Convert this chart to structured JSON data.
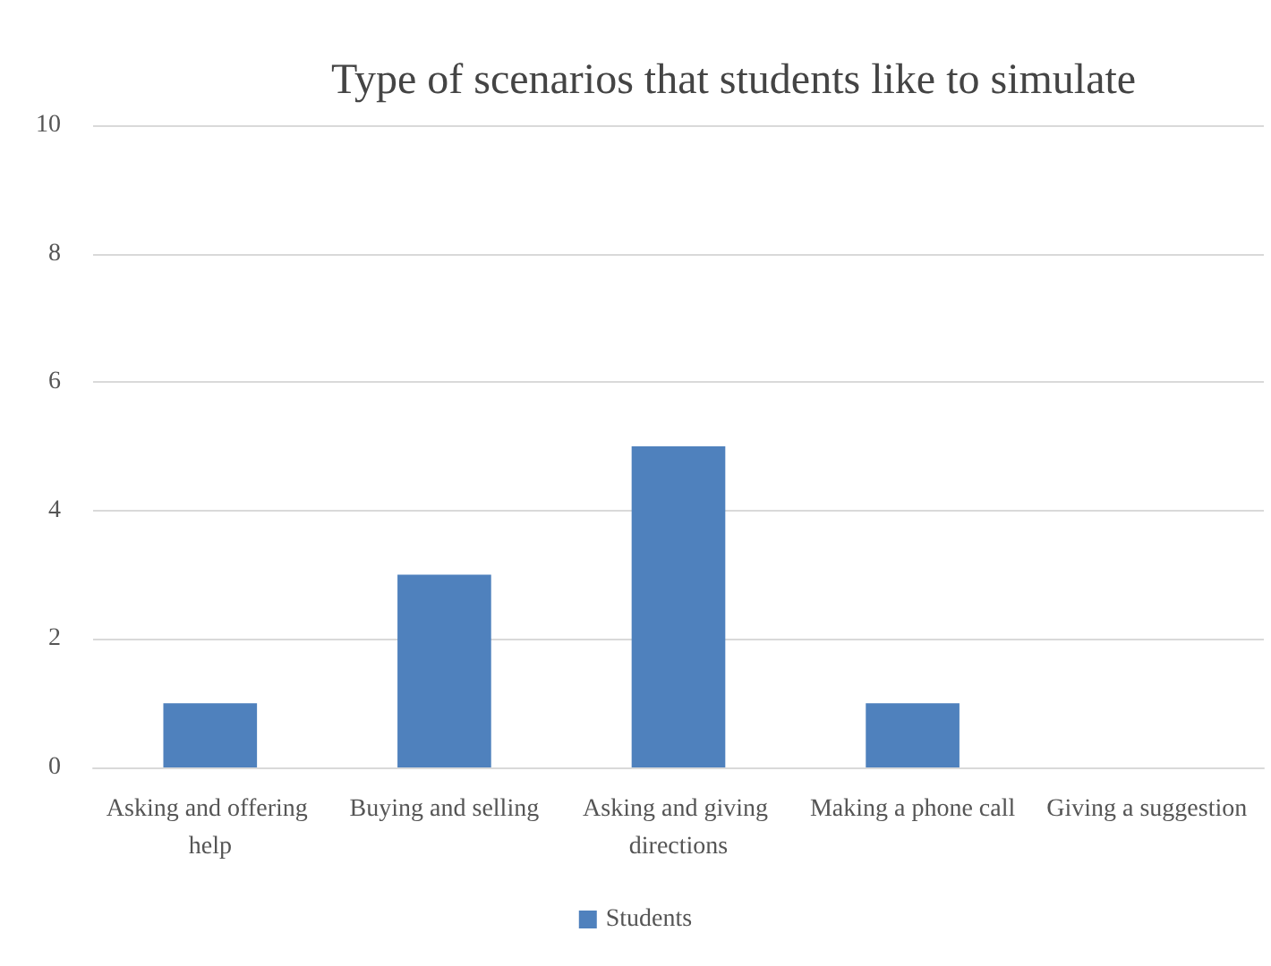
{
  "chart_data": {
    "type": "bar",
    "title": "Type of scenarios that students like to simulate",
    "categories": [
      "Asking and offering help",
      "Buying and selling",
      "Asking and giving directions",
      "Making a phone call",
      "Giving a suggestion"
    ],
    "series": [
      {
        "name": "Students",
        "color": "#4f81bd",
        "values": [
          1,
          3,
          5,
          1,
          0
        ]
      }
    ],
    "ylim": [
      0,
      10
    ],
    "yticks": [
      0,
      2,
      4,
      6,
      8,
      10
    ],
    "grid": "y",
    "legend": "bottom"
  }
}
